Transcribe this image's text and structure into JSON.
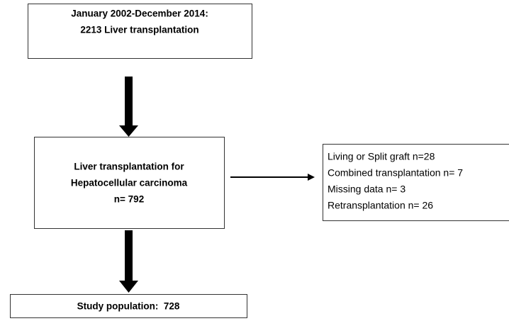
{
  "nodes": [
    {
      "lines": [
        "January 2002-December 2014:",
        "2213 Liver transplantation"
      ]
    },
    {
      "lines": [
        "Liver transplantation for",
        "Hepatocellular carcinoma",
        "n= 792"
      ]
    },
    {
      "lines": [
        "Living or Split graft n=28",
        "Combined transplantation n= 7",
        "Missing data n= 3",
        "Retransplantation n= 26"
      ]
    },
    {
      "lines": [
        "Study population:  728"
      ]
    }
  ]
}
